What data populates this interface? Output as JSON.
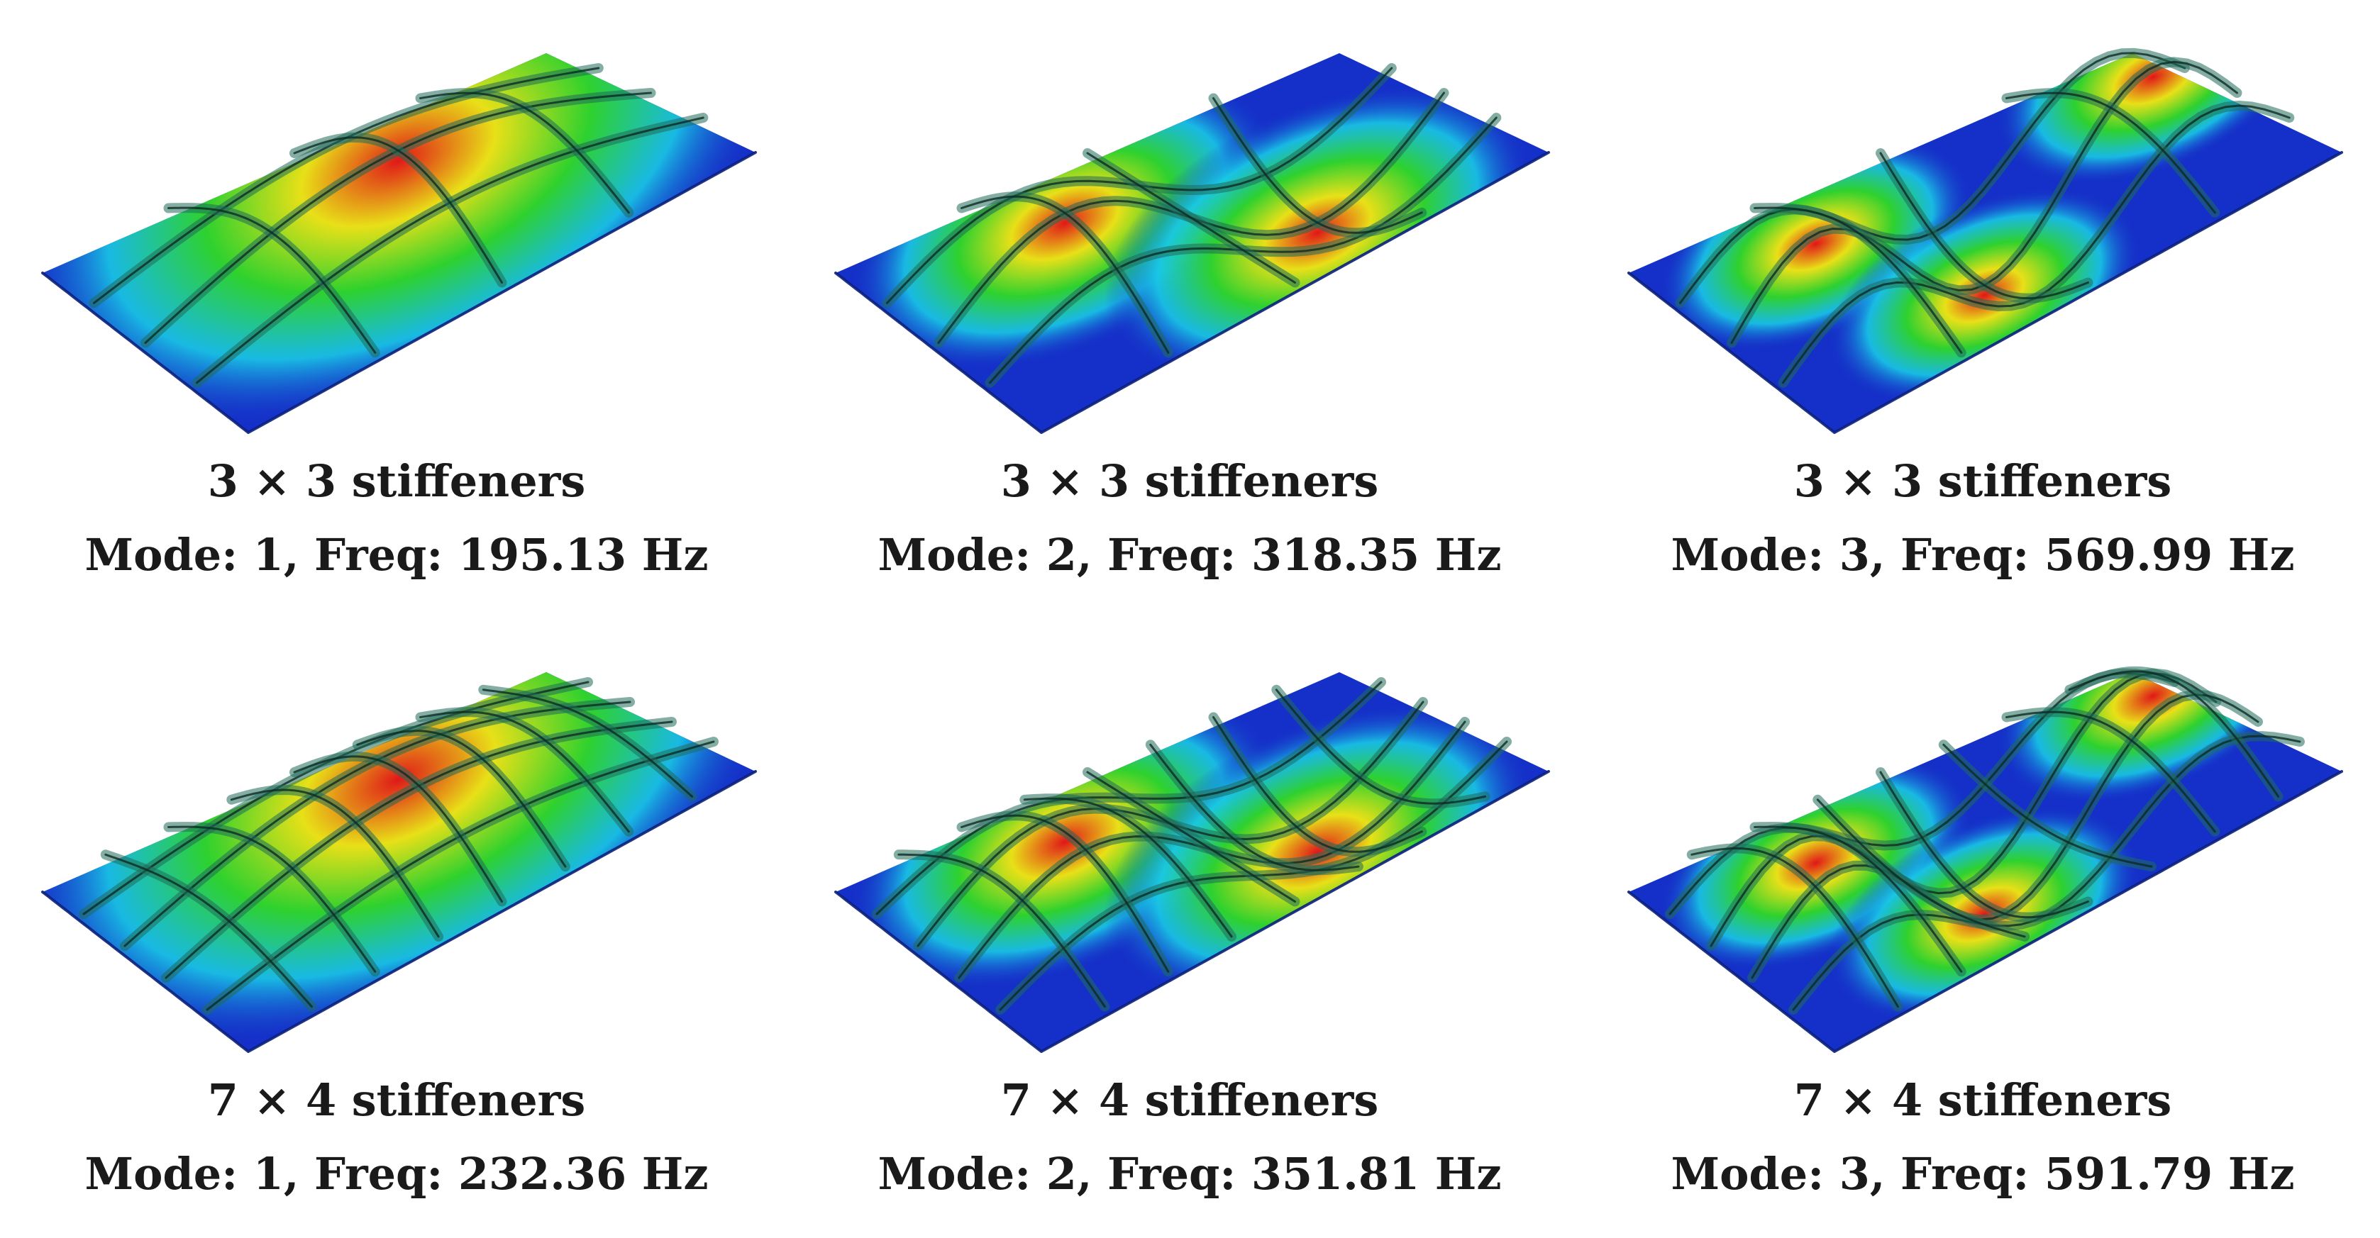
{
  "panels": [
    {
      "config": "3 × 3 stiffeners",
      "mode_line": "Mode: 1, Freq: 195.13 Hz",
      "mode": 1,
      "freq_hz": 195.13,
      "grid": [
        3,
        3
      ]
    },
    {
      "config": "3 × 3 stiffeners",
      "mode_line": "Mode: 2, Freq: 318.35 Hz",
      "mode": 2,
      "freq_hz": 318.35,
      "grid": [
        3,
        3
      ]
    },
    {
      "config": "3 × 3 stiffeners",
      "mode_line": "Mode: 3, Freq: 569.99 Hz",
      "mode": 3,
      "freq_hz": 569.99,
      "grid": [
        3,
        3
      ]
    },
    {
      "config": "7 × 4 stiffeners",
      "mode_line": "Mode: 1, Freq: 232.36 Hz",
      "mode": 1,
      "freq_hz": 232.36,
      "grid": [
        7,
        4
      ]
    },
    {
      "config": "7 × 4 stiffeners",
      "mode_line": "Mode: 2, Freq: 351.81 Hz",
      "mode": 2,
      "freq_hz": 351.81,
      "grid": [
        7,
        4
      ]
    },
    {
      "config": "7 × 4 stiffeners",
      "mode_line": "Mode: 3, Freq: 591.79 Hz",
      "mode": 3,
      "freq_hz": 591.79,
      "grid": [
        7,
        4
      ]
    }
  ],
  "colors": {
    "contour_low": "#1530c8",
    "contour_mid_low": "#19c8e6",
    "contour_mid": "#2ed12e",
    "contour_mid_high": "#e8e018",
    "contour_high": "#e01818",
    "stiffener": "#1f6b5a"
  }
}
